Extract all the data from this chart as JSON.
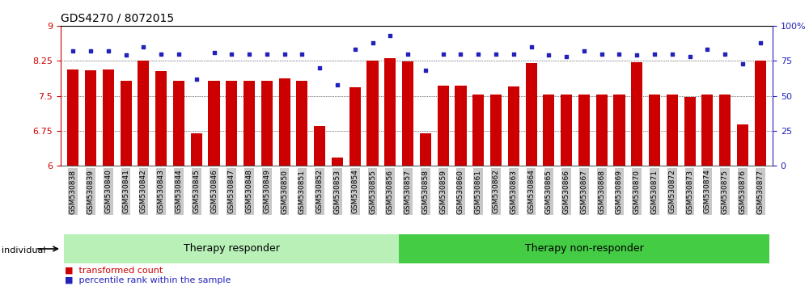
{
  "title": "GDS4270 / 8072015",
  "samples": [
    "GSM530838",
    "GSM530839",
    "GSM530840",
    "GSM530841",
    "GSM530842",
    "GSM530843",
    "GSM530844",
    "GSM530845",
    "GSM530846",
    "GSM530847",
    "GSM530848",
    "GSM530849",
    "GSM530850",
    "GSM530851",
    "GSM530852",
    "GSM530853",
    "GSM530854",
    "GSM530855",
    "GSM530856",
    "GSM530857",
    "GSM530858",
    "GSM530859",
    "GSM530860",
    "GSM530861",
    "GSM530862",
    "GSM530863",
    "GSM530864",
    "GSM530865",
    "GSM530866",
    "GSM530867",
    "GSM530868",
    "GSM530869",
    "GSM530870",
    "GSM530871",
    "GSM530872",
    "GSM530873",
    "GSM530874",
    "GSM530875",
    "GSM530876",
    "GSM530877"
  ],
  "bar_values": [
    8.07,
    8.05,
    8.07,
    7.82,
    8.25,
    8.03,
    7.83,
    6.7,
    7.83,
    7.83,
    7.83,
    7.83,
    7.87,
    7.82,
    6.85,
    6.18,
    7.68,
    8.25,
    8.3,
    8.23,
    6.7,
    7.72,
    7.72,
    7.53,
    7.53,
    7.7,
    8.2,
    7.52,
    7.52,
    7.52,
    7.52,
    7.52,
    8.22,
    7.52,
    7.52,
    7.47,
    7.52,
    7.52,
    6.88,
    8.25
  ],
  "percentile_values": [
    82,
    82,
    82,
    79,
    85,
    80,
    80,
    62,
    81,
    80,
    80,
    80,
    80,
    80,
    70,
    58,
    83,
    88,
    93,
    80,
    68,
    80,
    80,
    80,
    80,
    80,
    85,
    79,
    78,
    82,
    80,
    80,
    79,
    80,
    80,
    78,
    83,
    80,
    73,
    88
  ],
  "group1_count": 19,
  "group1_label": "Therapy responder",
  "group2_label": "Therapy non-responder",
  "ymin": 6.0,
  "ymax": 9.0,
  "yticks_left": [
    6.0,
    6.75,
    7.5,
    8.25,
    9.0
  ],
  "ytick_labels_left": [
    "6",
    "6.75",
    "7.5",
    "8.25",
    "9"
  ],
  "yticks_right": [
    0,
    25,
    50,
    75,
    100
  ],
  "ytick_labels_right": [
    "0",
    "25",
    "50",
    "75",
    "100%"
  ],
  "bar_color": "#cc0000",
  "dot_color": "#2222bb",
  "bg_color": "#ffffff",
  "group_bg_light": "#b8f0b8",
  "group_bg_dark": "#44cc44",
  "tick_label_bg": "#c8c8c8",
  "individual_label": "individual",
  "legend_bar_label": "transformed count",
  "legend_dot_label": "percentile rank within the sample"
}
